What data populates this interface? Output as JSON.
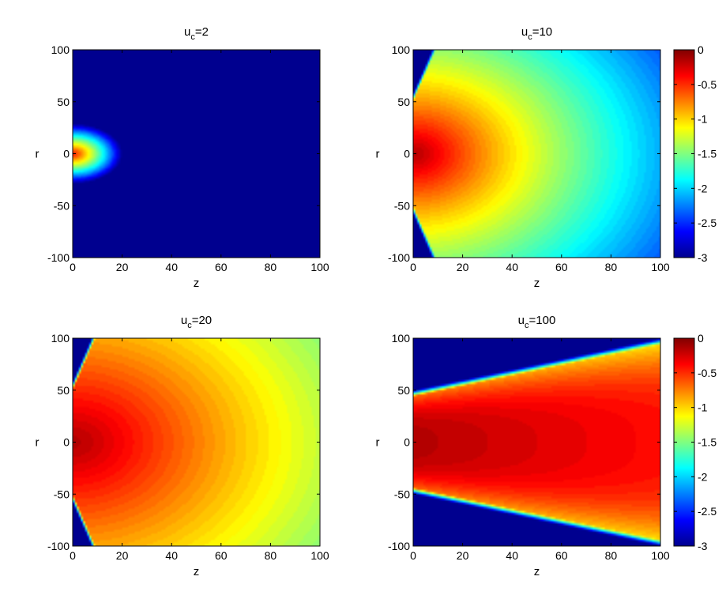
{
  "colormap": {
    "name": "jet",
    "stops": [
      "#00008f",
      "#0000ff",
      "#00ffff",
      "#ffff00",
      "#ff0000",
      "#800000"
    ]
  },
  "chart_data": [
    {
      "type": "heatmap",
      "title": {
        "base": "u",
        "sub": "c",
        "suffix": "=2"
      },
      "xlabel": "z",
      "ylabel": "r",
      "xlim": [
        0,
        100
      ],
      "ylim": [
        -100,
        100
      ],
      "xticks": [
        "0",
        "20",
        "40",
        "60",
        "80",
        "100"
      ],
      "yticks": [
        "100",
        "50",
        "0",
        "-50",
        "-100"
      ],
      "clim": [
        -3,
        0
      ],
      "u_c": 2,
      "colorbar": false
    },
    {
      "type": "heatmap",
      "title": {
        "base": "u",
        "sub": "c",
        "suffix": "=10"
      },
      "xlabel": "z",
      "ylabel": "r",
      "xlim": [
        0,
        100
      ],
      "ylim": [
        -100,
        100
      ],
      "xticks": [
        "0",
        "20",
        "40",
        "60",
        "80",
        "100"
      ],
      "yticks": [
        "100",
        "50",
        "0",
        "-50",
        "-100"
      ],
      "clim": [
        -3,
        0
      ],
      "u_c": 10,
      "colorbar": true,
      "colorbar_ticks": [
        "0",
        "-0.5",
        "-1",
        "-1.5",
        "-2",
        "-2.5",
        "-3"
      ]
    },
    {
      "type": "heatmap",
      "title": {
        "base": "u",
        "sub": "c",
        "suffix": "=20"
      },
      "xlabel": "z",
      "ylabel": "r",
      "xlim": [
        0,
        100
      ],
      "ylim": [
        -100,
        100
      ],
      "xticks": [
        "0",
        "20",
        "40",
        "60",
        "80",
        "100"
      ],
      "yticks": [
        "100",
        "50",
        "0",
        "-50",
        "-100"
      ],
      "clim": [
        -3,
        0
      ],
      "u_c": 20,
      "colorbar": false
    },
    {
      "type": "heatmap",
      "title": {
        "base": "u",
        "sub": "c",
        "suffix": "=100"
      },
      "xlabel": "z",
      "ylabel": "r",
      "xlim": [
        0,
        100
      ],
      "ylim": [
        -100,
        100
      ],
      "xticks": [
        "0",
        "20",
        "40",
        "60",
        "80",
        "100"
      ],
      "yticks": [
        "100",
        "50",
        "0",
        "-50",
        "-100"
      ],
      "clim": [
        -3,
        0
      ],
      "u_c": 100,
      "colorbar": true,
      "colorbar_ticks": [
        "0",
        "-0.5",
        "-1",
        "-1.5",
        "-2",
        "-2.5",
        "-3"
      ]
    }
  ]
}
